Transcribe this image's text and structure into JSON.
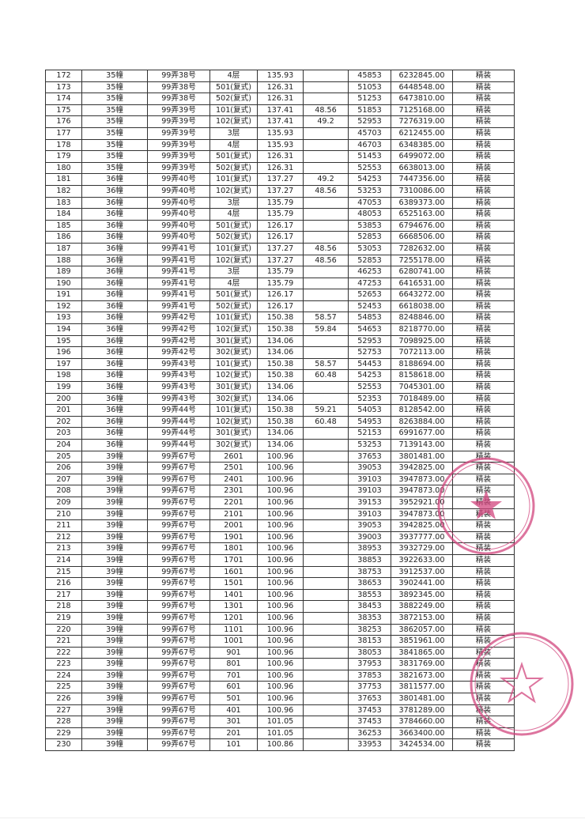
{
  "stamp_color": "#d2467e",
  "rows": [
    [
      "172",
      "35幢",
      "99弄38号",
      "4层",
      "135.93",
      "",
      "45853",
      "6232845.00",
      "精装"
    ],
    [
      "173",
      "35幢",
      "99弄38号",
      "501(复式)",
      "126.31",
      "",
      "51053",
      "6448548.00",
      "精装"
    ],
    [
      "174",
      "35幢",
      "99弄38号",
      "502(复式)",
      "126.31",
      "",
      "51253",
      "6473810.00",
      "精装"
    ],
    [
      "175",
      "35幢",
      "99弄39号",
      "101(复式)",
      "137.41",
      "48.56",
      "51853",
      "7125168.00",
      "精装"
    ],
    [
      "176",
      "35幢",
      "99弄39号",
      "102(复式)",
      "137.41",
      "49.2",
      "52953",
      "7276319.00",
      "精装"
    ],
    [
      "177",
      "35幢",
      "99弄39号",
      "3层",
      "135.93",
      "",
      "45703",
      "6212455.00",
      "精装"
    ],
    [
      "178",
      "35幢",
      "99弄39号",
      "4层",
      "135.93",
      "",
      "46703",
      "6348385.00",
      "精装"
    ],
    [
      "179",
      "35幢",
      "99弄39号",
      "501(复式)",
      "126.31",
      "",
      "51453",
      "6499072.00",
      "精装"
    ],
    [
      "180",
      "35幢",
      "99弄39号",
      "502(复式)",
      "126.31",
      "",
      "52553",
      "6638013.00",
      "精装"
    ],
    [
      "181",
      "36幢",
      "99弄40号",
      "101(复式)",
      "137.27",
      "49.2",
      "54253",
      "7447356.00",
      "精装"
    ],
    [
      "182",
      "36幢",
      "99弄40号",
      "102(复式)",
      "137.27",
      "48.56",
      "53253",
      "7310086.00",
      "精装"
    ],
    [
      "183",
      "36幢",
      "99弄40号",
      "3层",
      "135.79",
      "",
      "47053",
      "6389373.00",
      "精装"
    ],
    [
      "184",
      "36幢",
      "99弄40号",
      "4层",
      "135.79",
      "",
      "48053",
      "6525163.00",
      "精装"
    ],
    [
      "185",
      "36幢",
      "99弄40号",
      "501(复式)",
      "126.17",
      "",
      "53853",
      "6794676.00",
      "精装"
    ],
    [
      "186",
      "36幢",
      "99弄40号",
      "502(复式)",
      "126.17",
      "",
      "52853",
      "6668506.00",
      "精装"
    ],
    [
      "187",
      "36幢",
      "99弄41号",
      "101(复式)",
      "137.27",
      "48.56",
      "53053",
      "7282632.00",
      "精装"
    ],
    [
      "188",
      "36幢",
      "99弄41号",
      "102(复式)",
      "137.27",
      "48.56",
      "52853",
      "7255178.00",
      "精装"
    ],
    [
      "189",
      "36幢",
      "99弄41号",
      "3层",
      "135.79",
      "",
      "46253",
      "6280741.00",
      "精装"
    ],
    [
      "190",
      "36幢",
      "99弄41号",
      "4层",
      "135.79",
      "",
      "47253",
      "6416531.00",
      "精装"
    ],
    [
      "191",
      "36幢",
      "99弄41号",
      "501(复式)",
      "126.17",
      "",
      "52653",
      "6643272.00",
      "精装"
    ],
    [
      "192",
      "36幢",
      "99弄41号",
      "502(复式)",
      "126.17",
      "",
      "52453",
      "6618038.00",
      "精装"
    ],
    [
      "193",
      "36幢",
      "99弄42号",
      "101(复式)",
      "150.38",
      "58.57",
      "54853",
      "8248846.00",
      "精装"
    ],
    [
      "194",
      "36幢",
      "99弄42号",
      "102(复式)",
      "150.38",
      "59.84",
      "54653",
      "8218770.00",
      "精装"
    ],
    [
      "195",
      "36幢",
      "99弄42号",
      "301(复式)",
      "134.06",
      "",
      "52953",
      "7098925.00",
      "精装"
    ],
    [
      "196",
      "36幢",
      "99弄42号",
      "302(复式)",
      "134.06",
      "",
      "52753",
      "7072113.00",
      "精装"
    ],
    [
      "197",
      "36幢",
      "99弄43号",
      "101(复式)",
      "150.38",
      "58.57",
      "54453",
      "8188694.00",
      "精装"
    ],
    [
      "198",
      "36幢",
      "99弄43号",
      "102(复式)",
      "150.38",
      "60.48",
      "54253",
      "8158618.00",
      "精装"
    ],
    [
      "199",
      "36幢",
      "99弄43号",
      "301(复式)",
      "134.06",
      "",
      "52553",
      "7045301.00",
      "精装"
    ],
    [
      "200",
      "36幢",
      "99弄43号",
      "302(复式)",
      "134.06",
      "",
      "52353",
      "7018489.00",
      "精装"
    ],
    [
      "201",
      "36幢",
      "99弄44号",
      "101(复式)",
      "150.38",
      "59.21",
      "54053",
      "8128542.00",
      "精装"
    ],
    [
      "202",
      "36幢",
      "99弄44号",
      "102(复式)",
      "150.38",
      "60.48",
      "54953",
      "8263884.00",
      "精装"
    ],
    [
      "203",
      "36幢",
      "99弄44号",
      "301(复式)",
      "134.06",
      "",
      "52153",
      "6991677.00",
      "精装"
    ],
    [
      "204",
      "36幢",
      "99弄44号",
      "302(复式)",
      "134.06",
      "",
      "53253",
      "7139143.00",
      "精装"
    ],
    [
      "205",
      "39幢",
      "99弄67号",
      "2601",
      "100.96",
      "",
      "37653",
      "3801481.00",
      "精装"
    ],
    [
      "206",
      "39幢",
      "99弄67号",
      "2501",
      "100.96",
      "",
      "39053",
      "3942825.00",
      "精装"
    ],
    [
      "207",
      "39幢",
      "99弄67号",
      "2401",
      "100.96",
      "",
      "39103",
      "3947873.00",
      "精装"
    ],
    [
      "208",
      "39幢",
      "99弄67号",
      "2301",
      "100.96",
      "",
      "39103",
      "3947873.00",
      "精装"
    ],
    [
      "209",
      "39幢",
      "99弄67号",
      "2201",
      "100.96",
      "",
      "39153",
      "3952921.00",
      "精装"
    ],
    [
      "210",
      "39幢",
      "99弄67号",
      "2101",
      "100.96",
      "",
      "39103",
      "3947873.00",
      "精装"
    ],
    [
      "211",
      "39幢",
      "99弄67号",
      "2001",
      "100.96",
      "",
      "39053",
      "3942825.00",
      "精装"
    ],
    [
      "212",
      "39幢",
      "99弄67号",
      "1901",
      "100.96",
      "",
      "39003",
      "3937777.00",
      "精装"
    ],
    [
      "213",
      "39幢",
      "99弄67号",
      "1801",
      "100.96",
      "",
      "38953",
      "3932729.00",
      "精装"
    ],
    [
      "214",
      "39幢",
      "99弄67号",
      "1701",
      "100.96",
      "",
      "38853",
      "3922633.00",
      "精装"
    ],
    [
      "215",
      "39幢",
      "99弄67号",
      "1601",
      "100.96",
      "",
      "38753",
      "3912537.00",
      "精装"
    ],
    [
      "216",
      "39幢",
      "99弄67号",
      "1501",
      "100.96",
      "",
      "38653",
      "3902441.00",
      "精装"
    ],
    [
      "217",
      "39幢",
      "99弄67号",
      "1401",
      "100.96",
      "",
      "38553",
      "3892345.00",
      "精装"
    ],
    [
      "218",
      "39幢",
      "99弄67号",
      "1301",
      "100.96",
      "",
      "38453",
      "3882249.00",
      "精装"
    ],
    [
      "219",
      "39幢",
      "99弄67号",
      "1201",
      "100.96",
      "",
      "38353",
      "3872153.00",
      "精装"
    ],
    [
      "220",
      "39幢",
      "99弄67号",
      "1101",
      "100.96",
      "",
      "38253",
      "3862057.00",
      "精装"
    ],
    [
      "221",
      "39幢",
      "99弄67号",
      "1001",
      "100.96",
      "",
      "38153",
      "3851961.00",
      "精装"
    ],
    [
      "222",
      "39幢",
      "99弄67号",
      "901",
      "100.96",
      "",
      "38053",
      "3841865.00",
      "精装"
    ],
    [
      "223",
      "39幢",
      "99弄67号",
      "801",
      "100.96",
      "",
      "37953",
      "3831769.00",
      "精装"
    ],
    [
      "224",
      "39幢",
      "99弄67号",
      "701",
      "100.96",
      "",
      "37853",
      "3821673.00",
      "精装"
    ],
    [
      "225",
      "39幢",
      "99弄67号",
      "601",
      "100.96",
      "",
      "37753",
      "3811577.00",
      "精装"
    ],
    [
      "226",
      "39幢",
      "99弄67号",
      "501",
      "100.96",
      "",
      "37653",
      "3801481.00",
      "精装"
    ],
    [
      "227",
      "39幢",
      "99弄67号",
      "401",
      "100.96",
      "",
      "37453",
      "3781289.00",
      "精装"
    ],
    [
      "228",
      "39幢",
      "99弄67号",
      "301",
      "101.05",
      "",
      "37453",
      "3784660.00",
      "精装"
    ],
    [
      "229",
      "39幢",
      "99弄67号",
      "201",
      "101.05",
      "",
      "36253",
      "3663400.00",
      "精装"
    ],
    [
      "230",
      "39幢",
      "99弄67号",
      "101",
      "100.86",
      "",
      "33953",
      "3424534.00",
      "精装"
    ]
  ]
}
